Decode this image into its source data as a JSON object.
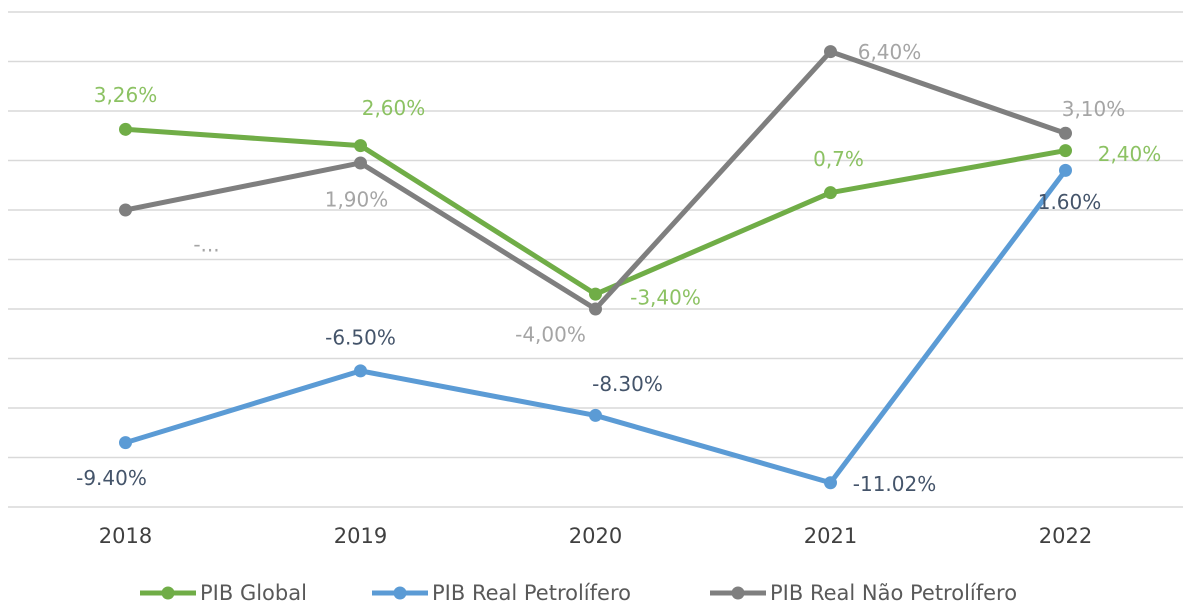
{
  "chart_data": {
    "type": "line",
    "categories": [
      "2018",
      "2019",
      "2020",
      "2021",
      "2022"
    ],
    "series": [
      {
        "name": "PIB Global",
        "color": "#70ad47",
        "label_color": "#8cc263",
        "values": [
          3.26,
          2.6,
          -3.4,
          0.7,
          2.4
        ],
        "value_labels": [
          "3,26%",
          "2,60%",
          "-3,40%",
          "0,7%",
          "2,40%"
        ]
      },
      {
        "name": "PIB Real Petrolífero",
        "color": "#5b9bd5",
        "label_color": "#44546a",
        "values": [
          -9.4,
          -6.5,
          -8.3,
          -11.02,
          1.6
        ],
        "value_labels": [
          "-9.40%",
          "-6.50%",
          "-8.30%",
          "-11.02%",
          "1.60%"
        ]
      },
      {
        "name": "PIB Real Não Petrolífero",
        "color": "#7f7f7f",
        "label_color": "#a5a5a5",
        "values": [
          0,
          1.9,
          -4.0,
          6.4,
          3.1
        ],
        "value_labels": [
          "-...",
          "1,90%",
          "-4,00%",
          "6,40%",
          "3,10%"
        ]
      }
    ],
    "ylim": [
      -12,
      8
    ],
    "yticks": [
      -12,
      -10,
      -8,
      -6,
      -4,
      -2,
      0,
      2,
      4,
      6,
      8
    ],
    "grid": true
  }
}
